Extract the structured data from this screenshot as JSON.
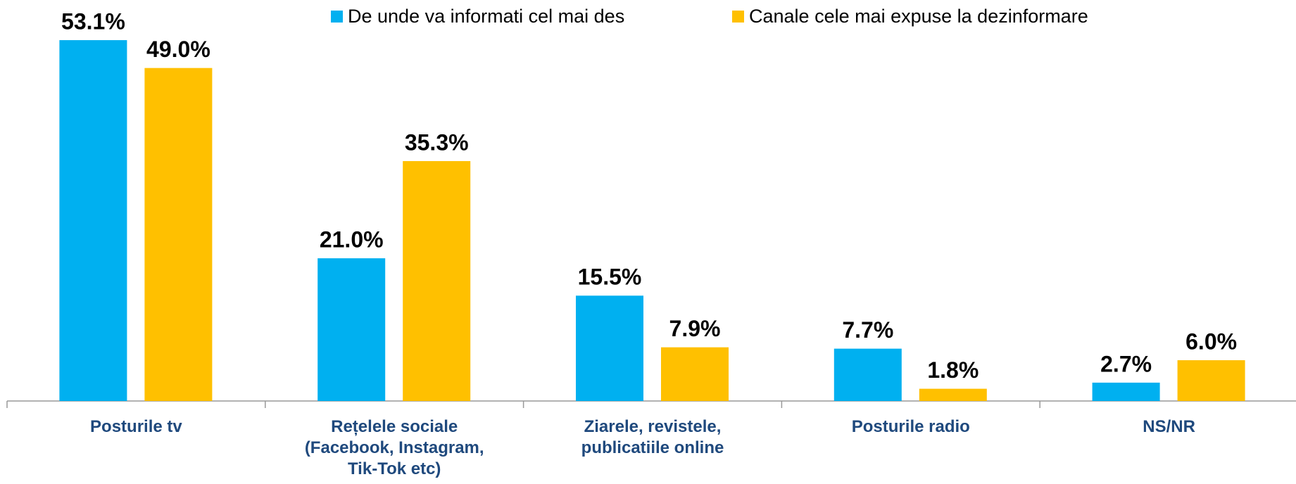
{
  "chart_data": {
    "type": "bar",
    "categories": [
      "Posturile tv",
      "Rețelele sociale (Facebook, Instagram, Tik-Tok etc)",
      "Ziarele, revistele, publicatiile online",
      "Posturile radio",
      "NS/NR"
    ],
    "series": [
      {
        "name": "De unde va informati cel mai des",
        "color": "#00B0F0",
        "values": [
          53.1,
          21.0,
          15.5,
          7.7,
          2.7
        ],
        "value_labels": [
          "53.1%",
          "21.0%",
          "15.5%",
          "7.7%",
          "2.7%"
        ]
      },
      {
        "name": "Canale cele mai expuse la dezinformare",
        "color": "#FFC000",
        "values": [
          49.0,
          35.3,
          7.9,
          1.8,
          6.0
        ],
        "value_labels": [
          "49.0%",
          "35.3%",
          "7.9%",
          "1.8%",
          "6.0%"
        ]
      }
    ],
    "legend": "top"
  }
}
